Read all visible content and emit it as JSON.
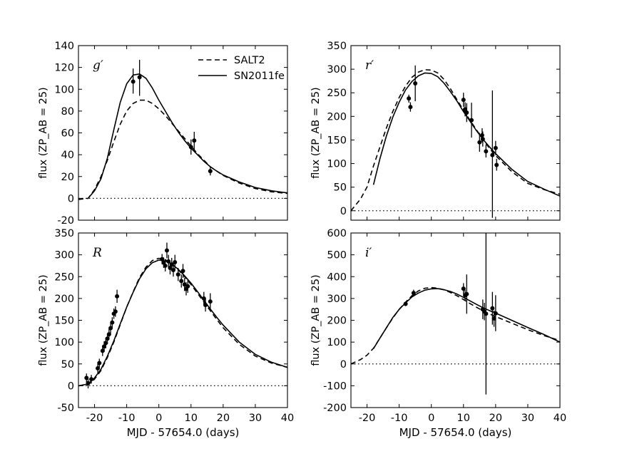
{
  "chart_data": [
    {
      "type": "line",
      "band": "g′",
      "xlabel": "",
      "ylabel": "flux (ZP_AB = 25)",
      "xlim": [
        -25,
        40
      ],
      "ylim": [
        -20,
        140
      ],
      "xticks": [],
      "yticks": [
        -20,
        0,
        20,
        40,
        60,
        80,
        100,
        120,
        140
      ],
      "zero_line": true,
      "legend": {
        "location": "top-center",
        "entries": [
          "SALT2",
          "SN2011fe"
        ]
      },
      "series": [
        {
          "name": "SALT2",
          "style": "dashed",
          "x": [
            -25,
            -22,
            -20,
            -18,
            -16,
            -14,
            -12,
            -10,
            -8,
            -6,
            -4,
            -2,
            0,
            2,
            4,
            6,
            8,
            10,
            12,
            14,
            16,
            18,
            20,
            25,
            30,
            35,
            40
          ],
          "y": [
            -1,
            0,
            8,
            20,
            35,
            52,
            68,
            80,
            87,
            90,
            90,
            87,
            82,
            76,
            69,
            62,
            55,
            48,
            41,
            35,
            29,
            25,
            21,
            14,
            9,
            6,
            4.5
          ]
        },
        {
          "name": "SN2011fe",
          "style": "solid",
          "x": [
            -22,
            -20,
            -18,
            -16,
            -14,
            -12,
            -10,
            -8,
            -6,
            -4,
            -2,
            0,
            2,
            4,
            6,
            8,
            10,
            12,
            14,
            16,
            18,
            20,
            25,
            30,
            35,
            40
          ],
          "y": [
            0,
            7,
            18,
            37,
            63,
            88,
            105,
            113,
            114,
            110,
            101,
            90,
            80,
            70,
            61,
            53,
            46,
            40,
            34,
            29,
            25,
            21.5,
            15,
            10,
            7,
            5
          ]
        }
      ],
      "points": [
        {
          "x": -8,
          "y": 107,
          "lo": 96,
          "hi": 119
        },
        {
          "x": -6,
          "y": 111,
          "lo": 94,
          "hi": 127
        },
        {
          "x": 10,
          "y": 47,
          "lo": 40,
          "hi": 54
        },
        {
          "x": 11,
          "y": 53,
          "lo": 44,
          "hi": 61
        },
        {
          "x": 16,
          "y": 25,
          "lo": 21,
          "hi": 29
        }
      ]
    },
    {
      "type": "line",
      "band": "r′",
      "xlabel": "",
      "ylabel": "flux (ZP_AB = 25)",
      "xlim": [
        -25,
        40
      ],
      "ylim": [
        -20,
        350
      ],
      "xticks": [],
      "yticks": [
        0,
        50,
        100,
        150,
        200,
        250,
        300,
        350
      ],
      "zero_line": true,
      "legend": null,
      "series": [
        {
          "name": "SALT2",
          "style": "dashed",
          "x": [
            -25,
            -22,
            -20,
            -18,
            -16,
            -14,
            -12,
            -10,
            -8,
            -6,
            -4,
            -2,
            0,
            2,
            4,
            6,
            8,
            10,
            12,
            14,
            16,
            18,
            20,
            25,
            30,
            35,
            40
          ],
          "y": [
            0,
            25,
            50,
            95,
            135,
            175,
            210,
            240,
            264,
            283,
            294,
            299,
            298,
            292,
            278,
            258,
            235,
            213,
            192,
            172,
            152,
            133,
            117,
            83,
            58,
            45,
            35
          ]
        },
        {
          "name": "SN2011fe",
          "style": "solid",
          "x": [
            -18,
            -16,
            -14,
            -12,
            -10,
            -8,
            -6,
            -4,
            -2,
            0,
            2,
            4,
            6,
            8,
            10,
            12,
            14,
            16,
            18,
            20,
            25,
            30,
            35,
            40
          ],
          "y": [
            55,
            110,
            158,
            198,
            230,
            256,
            274,
            286,
            292,
            291,
            284,
            270,
            252,
            232,
            210,
            190,
            170,
            152,
            136,
            121,
            88,
            62,
            46,
            31
          ]
        }
      ],
      "points": [
        {
          "x": -7,
          "y": 238,
          "lo": 229,
          "hi": 246
        },
        {
          "x": -6.5,
          "y": 220,
          "lo": 210,
          "hi": 230
        },
        {
          "x": -5,
          "y": 270,
          "lo": 232,
          "hi": 308
        },
        {
          "x": 10,
          "y": 235,
          "lo": 220,
          "hi": 250
        },
        {
          "x": 10.5,
          "y": 215,
          "lo": 200,
          "hi": 230
        },
        {
          "x": 11,
          "y": 208,
          "lo": 188,
          "hi": 228
        },
        {
          "x": 12.5,
          "y": 192,
          "lo": 155,
          "hi": 229
        },
        {
          "x": 15,
          "y": 145,
          "lo": 125,
          "hi": 165
        },
        {
          "x": 15.8,
          "y": 160,
          "lo": 145,
          "hi": 175
        },
        {
          "x": 16,
          "y": 152,
          "lo": 136,
          "hi": 168
        },
        {
          "x": 17,
          "y": 126,
          "lo": 113,
          "hi": 140
        },
        {
          "x": 19,
          "y": 118,
          "lo": -15,
          "hi": 255
        },
        {
          "x": 20,
          "y": 133,
          "lo": 118,
          "hi": 148
        },
        {
          "x": 20.3,
          "y": 97,
          "lo": 85,
          "hi": 110
        }
      ]
    },
    {
      "type": "line",
      "band": "R",
      "xlabel": "MJD - 57654.0 (days)",
      "ylabel": "flux (ZP_AB = 25)",
      "xlim": [
        -25,
        40
      ],
      "ylim": [
        -50,
        350
      ],
      "xticks": [
        -20,
        -10,
        0,
        10,
        20,
        30,
        40
      ],
      "yticks": [
        -50,
        0,
        50,
        100,
        150,
        200,
        250,
        300,
        350
      ],
      "zero_line": true,
      "legend": null,
      "series": [
        {
          "name": "SALT2",
          "style": "dashed",
          "x": [
            -25,
            -22,
            -20,
            -18,
            -16,
            -14,
            -12,
            -10,
            -8,
            -6,
            -4,
            -2,
            0,
            2,
            4,
            6,
            8,
            10,
            12,
            14,
            16,
            18,
            20,
            25,
            30,
            35,
            40
          ],
          "y": [
            0,
            2,
            15,
            35,
            65,
            100,
            140,
            180,
            215,
            248,
            272,
            287,
            292,
            289,
            280,
            266,
            250,
            232,
            212,
            192,
            172,
            152,
            133,
            95,
            68,
            52,
            42
          ]
        },
        {
          "name": "SN2011fe",
          "style": "solid",
          "x": [
            -25,
            -22,
            -20,
            -18,
            -16,
            -14,
            -12,
            -10,
            -8,
            -6,
            -4,
            -2,
            0,
            2,
            4,
            6,
            8,
            10,
            12,
            14,
            16,
            18,
            20,
            25,
            30,
            35,
            40
          ],
          "y": [
            0,
            4,
            18,
            38,
            68,
            103,
            142,
            180,
            214,
            245,
            268,
            282,
            288,
            286,
            279,
            267,
            252,
            235,
            216,
            196,
            176,
            157,
            139,
            100,
            72,
            54,
            42
          ]
        }
      ],
      "points": [
        {
          "x": -22.5,
          "y": 18,
          "lo": 8,
          "hi": 28
        },
        {
          "x": -22,
          "y": 6,
          "lo": -6,
          "hi": 16
        },
        {
          "x": -21,
          "y": 15,
          "lo": 5,
          "hi": 25
        },
        {
          "x": -19,
          "y": 40,
          "lo": 30,
          "hi": 50
        },
        {
          "x": -18.5,
          "y": 52,
          "lo": 42,
          "hi": 62
        },
        {
          "x": -17.5,
          "y": 80,
          "lo": 68,
          "hi": 92
        },
        {
          "x": -17,
          "y": 90,
          "lo": 78,
          "hi": 102
        },
        {
          "x": -16.5,
          "y": 98,
          "lo": 86,
          "hi": 110
        },
        {
          "x": -16,
          "y": 108,
          "lo": 96,
          "hi": 120
        },
        {
          "x": -15.5,
          "y": 118,
          "lo": 106,
          "hi": 130
        },
        {
          "x": -15,
          "y": 132,
          "lo": 120,
          "hi": 144
        },
        {
          "x": -14.5,
          "y": 145,
          "lo": 133,
          "hi": 157
        },
        {
          "x": -14,
          "y": 165,
          "lo": 153,
          "hi": 177
        },
        {
          "x": -13.5,
          "y": 170,
          "lo": 158,
          "hi": 182
        },
        {
          "x": -13,
          "y": 205,
          "lo": 190,
          "hi": 220
        },
        {
          "x": 1,
          "y": 290,
          "lo": 278,
          "hi": 302
        },
        {
          "x": 1.5,
          "y": 282,
          "lo": 270,
          "hi": 294
        },
        {
          "x": 2,
          "y": 275,
          "lo": 262,
          "hi": 288
        },
        {
          "x": 2.5,
          "y": 310,
          "lo": 292,
          "hi": 328
        },
        {
          "x": 3,
          "y": 285,
          "lo": 270,
          "hi": 300
        },
        {
          "x": 3.5,
          "y": 270,
          "lo": 255,
          "hi": 285
        },
        {
          "x": 4,
          "y": 278,
          "lo": 263,
          "hi": 293
        },
        {
          "x": 4.5,
          "y": 265,
          "lo": 250,
          "hi": 280
        },
        {
          "x": 5,
          "y": 283,
          "lo": 266,
          "hi": 300
        },
        {
          "x": 6,
          "y": 255,
          "lo": 240,
          "hi": 270
        },
        {
          "x": 7,
          "y": 240,
          "lo": 225,
          "hi": 255
        },
        {
          "x": 7.5,
          "y": 263,
          "lo": 247,
          "hi": 279
        },
        {
          "x": 8,
          "y": 232,
          "lo": 217,
          "hi": 247
        },
        {
          "x": 8.5,
          "y": 222,
          "lo": 207,
          "hi": 237
        },
        {
          "x": 9,
          "y": 228,
          "lo": 213,
          "hi": 243
        },
        {
          "x": 14,
          "y": 200,
          "lo": 185,
          "hi": 215
        },
        {
          "x": 14.5,
          "y": 185,
          "lo": 170,
          "hi": 200
        },
        {
          "x": 16,
          "y": 193,
          "lo": 174,
          "hi": 212
        }
      ]
    },
    {
      "type": "line",
      "band": "i′",
      "xlabel": "MJD - 57654.0 (days)",
      "ylabel": "flux (ZP_AB = 25)",
      "xlim": [
        -25,
        40
      ],
      "ylim": [
        -200,
        600
      ],
      "xticks": [
        -20,
        -10,
        0,
        10,
        20,
        30,
        40
      ],
      "yticks": [
        -200,
        -100,
        0,
        100,
        200,
        300,
        400,
        500,
        600
      ],
      "zero_line": true,
      "legend": null,
      "series": [
        {
          "name": "SALT2",
          "style": "dashed",
          "x": [
            -25,
            -22,
            -20,
            -18,
            -16,
            -14,
            -12,
            -10,
            -8,
            -6,
            -4,
            -2,
            0,
            2,
            4,
            6,
            8,
            10,
            12,
            14,
            16,
            18,
            20,
            25,
            30,
            35,
            40
          ],
          "y": [
            0,
            20,
            40,
            72,
            118,
            165,
            210,
            250,
            283,
            313,
            335,
            347,
            350,
            347,
            339,
            327,
            312,
            295,
            277,
            260,
            244,
            230,
            217,
            187,
            157,
            130,
            107
          ]
        },
        {
          "name": "SN2011fe",
          "style": "solid",
          "x": [
            -18,
            -16,
            -14,
            -12,
            -10,
            -8,
            -6,
            -4,
            -2,
            0,
            2,
            4,
            6,
            8,
            10,
            12,
            14,
            16,
            18,
            20,
            25,
            30,
            35,
            40
          ],
          "y": [
            70,
            118,
            165,
            212,
            250,
            280,
            307,
            325,
            338,
            344,
            345,
            340,
            332,
            320,
            305,
            289,
            273,
            258,
            245,
            233,
            200,
            167,
            135,
            100
          ]
        }
      ],
      "points": [
        {
          "x": -8,
          "y": 275,
          "lo": 265,
          "hi": 285
        },
        {
          "x": -5.5,
          "y": 325,
          "lo": 310,
          "hi": 340
        },
        {
          "x": 10,
          "y": 345,
          "lo": 320,
          "hi": 370
        },
        {
          "x": 10.5,
          "y": 315,
          "lo": 290,
          "hi": 340
        },
        {
          "x": 11,
          "y": 320,
          "lo": 230,
          "hi": 410
        },
        {
          "x": 16,
          "y": 250,
          "lo": 205,
          "hi": 295
        },
        {
          "x": 16.5,
          "y": 240,
          "lo": 200,
          "hi": 280
        },
        {
          "x": 17,
          "y": 230,
          "lo": -140,
          "hi": 600
        },
        {
          "x": 19,
          "y": 255,
          "lo": 180,
          "hi": 330
        },
        {
          "x": 19.5,
          "y": 208,
          "lo": 170,
          "hi": 245
        },
        {
          "x": 20,
          "y": 232,
          "lo": 150,
          "hi": 315
        }
      ]
    }
  ]
}
